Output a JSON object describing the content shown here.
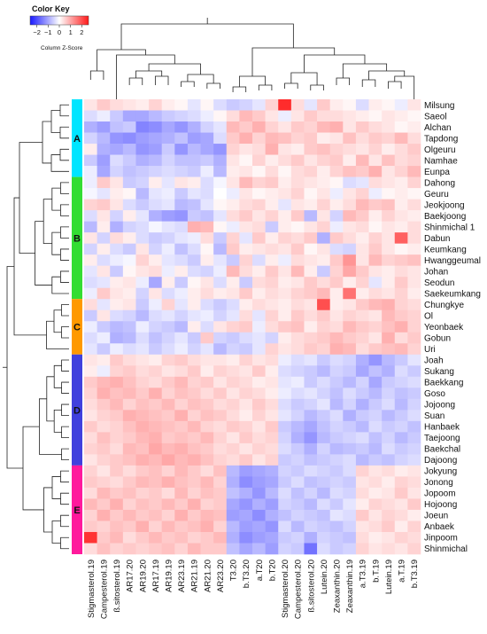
{
  "chart_data": {
    "type": "heatmap",
    "color_key": {
      "title": "Color Key",
      "scale_label": "Column Z-Score",
      "ticks": [
        -2,
        -1,
        0,
        1,
        2
      ],
      "tick_labels": [
        "−2",
        "−1",
        "0",
        "1",
        "2"
      ],
      "range": [
        -2.6,
        2.6
      ],
      "low_color": "#1a1aff",
      "mid_color": "#ffffff",
      "high_color": "#ff1a1a"
    },
    "rows": [
      "Milsung",
      "Saeol",
      "Alchan",
      "Tapdong",
      "Olgeuru",
      "Namhae",
      "Eunpa",
      "Dahong",
      "Geuru",
      "Jeokjoong",
      "Baekjoong",
      "Shinmichal 1",
      "Dabun",
      "Keumkang",
      "Hwanggeumal",
      "Johan",
      "Seodun",
      "Saekeumkang",
      "Chungkye",
      "Ol",
      "Yeonbaek",
      "Gobun",
      "Uri",
      "Joah",
      "Sukang",
      "Baekkang",
      "Goso",
      "Jojoong",
      "Suan",
      "Hanbaek",
      "Taejoong",
      "Baekchal",
      "Dajoong",
      "Jokyung",
      "Jonong",
      "Jopoom",
      "Hojoong",
      "Joeun",
      "Anbaek",
      "Jinpoom",
      "Shinmichal"
    ],
    "columns": [
      "Stigmasterol.19",
      "Campesterol.19",
      "ß.sitosterol.19",
      "AR17.20",
      "AR19.20",
      "AR17.19",
      "AR19.19",
      "AR23.19",
      "AR21.19",
      "AR21.20",
      "AR23.20",
      "T3.20",
      "b.T3.20",
      "a.T20",
      "b.T20",
      "Stigmasterol.20",
      "Campesterol.20",
      "ß.sitosterol.20",
      "Lutein.20",
      "Zeaxanthin.20",
      "Zeaxanthin.19",
      "a.T3.19",
      "b.T.19",
      "Lutein.19",
      "a.T.19",
      "b.T3.19"
    ],
    "groups": [
      {
        "label": "A",
        "color": "#00e5ff",
        "count": 7
      },
      {
        "label": "B",
        "color": "#33dd33",
        "count": 11
      },
      {
        "label": "C",
        "color": "#ff9900",
        "count": 5
      },
      {
        "label": "D",
        "color": "#4040dd",
        "count": 10
      },
      {
        "label": "E",
        "color": "#ff1a9c",
        "count": 8
      }
    ],
    "values": [
      [
        0.3,
        0.6,
        0.4,
        0.3,
        0.2,
        0.5,
        0.2,
        0.1,
        -0.3,
        0.1,
        -0.4,
        -0.6,
        -0.5,
        -0.3,
        0.5,
        2.4,
        0.4,
        -0.3,
        0.6,
        0.2,
        0.1,
        -0.4,
        0.2,
        0.1,
        -0.2,
        0.3
      ],
      [
        -0.4,
        -0.2,
        -0.6,
        -1.0,
        -1.0,
        -0.8,
        -0.6,
        -0.5,
        -0.4,
        -0.2,
        0.1,
        0.4,
        0.8,
        0.6,
        0.3,
        -0.2,
        0.3,
        0.6,
        0.4,
        0.4,
        0.3,
        0.2,
        0.1,
        0.3,
        0.2,
        0.1
      ],
      [
        -0.9,
        -1.1,
        -0.7,
        -0.6,
        -1.4,
        -1.3,
        -1.0,
        -1.2,
        -0.9,
        -0.5,
        -0.3,
        0.8,
        0.6,
        0.9,
        0.5,
        0.3,
        0.6,
        0.5,
        0.8,
        0.9,
        0.3,
        0.6,
        0.4,
        0.3,
        0.1,
        0.2
      ],
      [
        -0.5,
        -0.8,
        -1.2,
        -1.3,
        -1.1,
        -1.0,
        -0.9,
        -0.7,
        -1.1,
        -1.0,
        -0.4,
        0.6,
        0.9,
        0.5,
        0.8,
        0.7,
        0.5,
        0.6,
        0.2,
        0.3,
        0.7,
        0.4,
        0.6,
        0.5,
        0.8,
        0.4
      ],
      [
        0.2,
        -0.9,
        -1.0,
        -0.8,
        -1.2,
        -1.1,
        -0.6,
        -1.2,
        -0.8,
        -1.0,
        -1.2,
        0.5,
        0.3,
        0.4,
        0.9,
        0.3,
        0.2,
        0.6,
        0.7,
        0.5,
        0.4,
        0.3,
        0.5,
        0.2,
        0.4,
        0.6
      ],
      [
        -0.6,
        -1.1,
        -0.4,
        -0.6,
        -0.9,
        -0.8,
        -0.5,
        -0.7,
        -0.7,
        -0.6,
        -0.9,
        0.3,
        0.1,
        0.5,
        0.2,
        0.4,
        0.6,
        0.3,
        0.5,
        0.6,
        0.2,
        0.8,
        0.3,
        0.7,
        0.4,
        0.5
      ],
      [
        -0.2,
        -1.0,
        -0.5,
        -0.7,
        -0.6,
        -0.5,
        -0.4,
        -0.5,
        -0.6,
        -0.2,
        -0.8,
        0.2,
        0.3,
        0.1,
        0.4,
        0.1,
        0.4,
        0.5,
        0.2,
        0.5,
        0.7,
        0.6,
        0.9,
        0.3,
        0.5,
        0.8
      ],
      [
        -0.2,
        0.6,
        0.3,
        -0.6,
        -0.5,
        0.2,
        -0.3,
        0.3,
        0.2,
        -0.4,
        -0.1,
        0.3,
        0.8,
        0.5,
        0.6,
        0.2,
        0.4,
        0.3,
        0.2,
        0.1,
        -0.4,
        -0.3,
        0.4,
        0.3,
        0.2,
        0.5
      ],
      [
        -0.1,
        -0.3,
        0.2,
        0.1,
        -0.8,
        -0.3,
        -0.2,
        -0.6,
        -0.3,
        -0.4,
        0.0,
        -0.2,
        0.3,
        0.1,
        0.2,
        0.3,
        0.5,
        0.1,
        0.3,
        -0.2,
        0.3,
        0.5,
        -0.2,
        0.1,
        0.2,
        0.1
      ],
      [
        0.5,
        0.6,
        0.3,
        -0.4,
        -0.6,
        -0.4,
        -0.3,
        -0.8,
        -0.7,
        -0.3,
        0.1,
        0.2,
        0.4,
        0.5,
        0.2,
        -0.3,
        0.3,
        0.2,
        0.5,
        0.2,
        0.4,
        0.8,
        0.6,
        0.7,
        0.2,
        0.4
      ],
      [
        -0.4,
        0.3,
        -0.5,
        0.2,
        -0.3,
        -0.9,
        -1.1,
        -1.2,
        -0.6,
        -0.7,
        -0.3,
        0.4,
        0.6,
        0.3,
        0.5,
        0.2,
        0.6,
        -0.8,
        0.3,
        -0.5,
        0.8,
        0.6,
        0.2,
        0.5,
        0.3,
        0.2
      ],
      [
        -0.8,
        0.2,
        -0.9,
        -0.5,
        -0.4,
        -0.1,
        -0.3,
        -0.4,
        0.9,
        0.8,
        0.1,
        -0.2,
        0.3,
        0.4,
        -0.6,
        0.2,
        0.1,
        0.3,
        0.5,
        -0.2,
        0.3,
        0.4,
        0.1,
        0.3,
        0.2,
        0.4
      ],
      [
        0.3,
        -0.5,
        0.4,
        0.2,
        -0.4,
        -0.6,
        -0.5,
        -0.3,
        -0.2,
        0.4,
        -0.6,
        0.5,
        -0.3,
        0.6,
        0.2,
        0.5,
        0.4,
        0.6,
        -0.9,
        0.6,
        0.4,
        0.2,
        0.5,
        0.3,
        1.8,
        0.4
      ],
      [
        -0.5,
        0.2,
        -0.4,
        -0.6,
        0.3,
        -0.5,
        -0.2,
        -0.7,
        -0.4,
        0.1,
        -0.8,
        0.6,
        0.2,
        0.3,
        0.4,
        0.3,
        0.6,
        0.1,
        0.3,
        -0.4,
        -0.5,
        0.3,
        0.6,
        0.3,
        0.1,
        0.2
      ],
      [
        0.2,
        -0.4,
        -0.2,
        -0.1,
        0.5,
        0.2,
        -0.3,
        -0.4,
        -0.6,
        0.2,
        -0.3,
        -0.6,
        0.5,
        -0.4,
        0.2,
        -0.2,
        0.4,
        0.3,
        0.2,
        0.6,
        1.2,
        0.3,
        0.8,
        0.5,
        0.6,
        0.7
      ],
      [
        -0.3,
        0.3,
        -0.6,
        0.1,
        0.3,
        0.4,
        -0.2,
        0.2,
        -0.4,
        -0.5,
        -0.2,
        0.8,
        0.4,
        0.2,
        0.6,
        0.3,
        0.8,
        0.2,
        -0.6,
        0.5,
        1.0,
        0.6,
        0.3,
        0.2,
        0.4,
        0.3
      ],
      [
        -0.4,
        -0.3,
        0.2,
        0.3,
        -0.2,
        -1.0,
        0.2,
        -0.6,
        0.1,
        0.3,
        -0.4,
        0.2,
        -0.6,
        0.4,
        0.5,
        0.2,
        0.3,
        0.6,
        0.4,
        0.6,
        0.2,
        0.5,
        -0.3,
        0.2,
        0.6,
        0.3
      ],
      [
        -0.2,
        0.6,
        0.3,
        0.2,
        -0.5,
        0.3,
        -0.4,
        -0.2,
        0.2,
        0.4,
        0.2,
        0.3,
        0.6,
        0.2,
        0.4,
        0.3,
        0.5,
        0.6,
        0.8,
        0.2,
        1.6,
        0.2,
        0.4,
        0.3,
        0.5,
        0.2
      ],
      [
        0.4,
        -0.3,
        0.2,
        0.3,
        -0.6,
        -0.2,
        0.5,
        -0.3,
        0.2,
        -0.4,
        -0.6,
        -0.4,
        0.2,
        0.4,
        0.3,
        0.2,
        0.4,
        0.3,
        2.0,
        0.2,
        0.3,
        0.6,
        0.8,
        0.9,
        0.5,
        0.4
      ],
      [
        -0.6,
        0.3,
        -0.4,
        -0.5,
        -0.8,
        -0.4,
        -0.3,
        -0.5,
        -0.3,
        -0.2,
        -0.5,
        -0.3,
        0.4,
        -0.3,
        0.5,
        0.2,
        0.6,
        0.4,
        0.6,
        0.3,
        0.5,
        0.4,
        0.3,
        0.8,
        0.6,
        0.5
      ],
      [
        -0.2,
        -0.6,
        -0.8,
        -0.7,
        -0.2,
        -0.5,
        -0.6,
        -0.8,
        0.2,
        -0.4,
        0.3,
        0.5,
        0.6,
        -0.2,
        0.4,
        0.6,
        0.7,
        0.2,
        0.5,
        0.4,
        0.8,
        0.6,
        0.5,
        0.7,
        0.9,
        0.5
      ],
      [
        -0.4,
        -0.2,
        -0.9,
        -0.8,
        -0.4,
        -0.7,
        -0.5,
        -0.3,
        -0.6,
        0.6,
        -0.5,
        -0.6,
        -0.4,
        -0.3,
        -0.5,
        0.2,
        0.4,
        0.5,
        0.6,
        0.8,
        0.6,
        0.5,
        0.3,
        0.9,
        0.4,
        0.6
      ],
      [
        -0.3,
        -0.6,
        -0.2,
        -0.4,
        -0.3,
        -0.6,
        -0.4,
        -0.2,
        -0.5,
        -0.3,
        -0.8,
        -0.5,
        -0.6,
        -0.3,
        0.5,
        0.3,
        0.4,
        0.6,
        0.5,
        0.9,
        0.8,
        0.4,
        0.6,
        0.7,
        0.8,
        0.5
      ],
      [
        0.3,
        0.2,
        0.6,
        0.4,
        0.3,
        0.2,
        0.5,
        0.6,
        0.4,
        0.3,
        0.3,
        0.2,
        0.5,
        0.3,
        0.4,
        -0.2,
        -0.4,
        -0.3,
        -0.6,
        -0.4,
        -0.5,
        -0.9,
        -1.2,
        -0.8,
        -0.6,
        -0.3
      ],
      [
        0.2,
        -0.2,
        0.5,
        0.6,
        0.4,
        0.5,
        0.3,
        0.4,
        0.6,
        0.2,
        0.5,
        0.4,
        0.3,
        0.6,
        0.2,
        -0.4,
        -0.5,
        -0.6,
        -0.8,
        -0.5,
        -0.6,
        -1.0,
        -0.7,
        -0.9,
        -0.4,
        -0.6
      ],
      [
        0.6,
        0.8,
        0.9,
        0.7,
        0.5,
        0.4,
        0.6,
        0.8,
        0.5,
        0.6,
        0.3,
        0.5,
        0.4,
        0.2,
        0.3,
        -0.3,
        -0.2,
        -0.6,
        -0.4,
        -0.6,
        -0.8,
        -0.5,
        -1.0,
        -0.6,
        -0.5,
        -0.4
      ],
      [
        0.5,
        0.9,
        0.7,
        0.8,
        0.6,
        0.9,
        0.5,
        0.7,
        0.6,
        0.4,
        0.6,
        0.3,
        0.5,
        0.4,
        0.2,
        -0.2,
        -0.4,
        -0.3,
        -0.5,
        -0.7,
        -0.4,
        -0.6,
        -0.8,
        -0.5,
        -0.7,
        -0.6
      ],
      [
        0.4,
        0.6,
        0.8,
        0.5,
        0.7,
        0.6,
        0.8,
        0.5,
        0.7,
        0.6,
        0.4,
        0.5,
        0.3,
        0.6,
        0.4,
        -0.4,
        -0.6,
        -0.5,
        -0.3,
        -0.8,
        -0.5,
        -0.9,
        -0.6,
        -0.4,
        -0.8,
        -0.5
      ],
      [
        0.3,
        0.5,
        0.6,
        0.9,
        0.8,
        0.7,
        0.6,
        0.9,
        0.5,
        0.7,
        0.6,
        0.4,
        0.2,
        0.5,
        0.3,
        -0.3,
        -0.5,
        -0.8,
        -0.6,
        -0.4,
        -0.9,
        -0.6,
        -0.5,
        -0.8,
        -0.6,
        -0.4
      ],
      [
        0.6,
        0.4,
        0.5,
        0.7,
        0.9,
        0.8,
        0.7,
        0.6,
        0.8,
        0.5,
        0.4,
        0.6,
        0.5,
        0.3,
        0.6,
        -0.6,
        -0.8,
        -1.0,
        -0.7,
        -0.5,
        -0.6,
        -0.8,
        -0.4,
        -0.6,
        -0.5,
        -0.7
      ],
      [
        0.4,
        0.7,
        0.5,
        0.6,
        0.8,
        0.9,
        0.6,
        0.7,
        0.6,
        0.8,
        0.5,
        0.3,
        0.6,
        0.4,
        0.5,
        -0.5,
        -0.9,
        -1.2,
        -0.8,
        -0.6,
        -0.5,
        -0.4,
        -0.7,
        -0.5,
        -0.8,
        -0.6
      ],
      [
        0.5,
        0.6,
        0.4,
        0.8,
        0.7,
        1.0,
        0.8,
        0.9,
        0.7,
        0.6,
        0.4,
        0.5,
        0.3,
        0.5,
        0.4,
        -0.4,
        -0.6,
        -0.9,
        -0.5,
        -0.8,
        -0.7,
        -0.6,
        -0.8,
        -0.4,
        -0.6,
        -0.5
      ],
      [
        0.3,
        0.5,
        0.6,
        0.7,
        0.9,
        0.8,
        1.0,
        0.8,
        0.9,
        0.7,
        0.5,
        0.4,
        0.6,
        0.3,
        0.5,
        -0.6,
        -0.5,
        -0.7,
        -0.6,
        -0.5,
        -0.4,
        -0.8,
        -0.6,
        -0.7,
        -0.5,
        -0.4
      ],
      [
        0.5,
        0.3,
        0.6,
        0.4,
        0.6,
        0.7,
        0.5,
        0.8,
        0.6,
        0.4,
        0.7,
        -0.8,
        -1.1,
        -1.0,
        -0.9,
        -0.5,
        -0.6,
        -0.4,
        -0.5,
        -0.6,
        -0.4,
        0.5,
        0.3,
        0.4,
        0.2,
        0.3
      ],
      [
        0.6,
        0.5,
        0.4,
        0.6,
        0.8,
        0.7,
        0.9,
        0.7,
        0.6,
        0.8,
        0.5,
        -0.9,
        -1.3,
        -1.1,
        -1.0,
        -0.6,
        -0.4,
        -0.7,
        -0.6,
        -0.5,
        -0.6,
        0.3,
        0.4,
        0.2,
        0.5,
        0.4
      ],
      [
        0.4,
        0.8,
        0.6,
        0.7,
        0.5,
        0.6,
        0.4,
        0.8,
        0.5,
        0.7,
        0.6,
        -0.7,
        -0.9,
        -1.2,
        -0.8,
        -0.4,
        -0.7,
        -0.5,
        -0.8,
        -0.4,
        -0.5,
        0.4,
        0.2,
        0.3,
        0.6,
        0.3
      ],
      [
        0.8,
        0.6,
        0.9,
        0.5,
        0.7,
        0.6,
        0.8,
        0.6,
        0.9,
        0.5,
        0.6,
        -1.0,
        -1.2,
        -0.9,
        -1.1,
        -0.5,
        -0.6,
        -0.8,
        -0.4,
        -0.6,
        -0.3,
        0.2,
        0.5,
        0.4,
        0.3,
        0.6
      ],
      [
        0.5,
        0.9,
        0.6,
        0.8,
        0.6,
        0.7,
        0.5,
        0.9,
        0.6,
        0.8,
        0.7,
        -1.1,
        -1.0,
        -1.3,
        -0.9,
        -0.7,
        -0.5,
        -0.6,
        -0.7,
        -0.3,
        -0.4,
        0.6,
        0.3,
        0.5,
        0.4,
        0.2
      ],
      [
        0.6,
        0.5,
        0.7,
        0.6,
        0.9,
        0.5,
        0.8,
        0.6,
        0.7,
        0.9,
        0.5,
        -0.8,
        -1.1,
        -1.0,
        -1.2,
        -0.4,
        -0.8,
        -0.5,
        -0.6,
        -0.7,
        -0.5,
        0.3,
        0.4,
        0.6,
        0.2,
        0.5
      ],
      [
        2.3,
        0.6,
        0.8,
        0.4,
        0.6,
        0.8,
        0.6,
        0.7,
        0.5,
        0.6,
        0.8,
        -0.9,
        -1.3,
        -1.1,
        -1.0,
        -0.6,
        -0.5,
        -0.9,
        -0.5,
        -0.6,
        -0.7,
        0.4,
        0.2,
        0.3,
        0.5,
        0.4
      ],
      [
        0.4,
        0.7,
        0.5,
        0.6,
        0.5,
        0.6,
        0.7,
        0.5,
        0.8,
        0.6,
        0.6,
        -0.7,
        -1.0,
        -0.8,
        -1.1,
        -0.5,
        -0.6,
        -1.6,
        -0.4,
        -0.6,
        -0.5,
        0.5,
        0.3,
        0.4,
        0.3,
        0.5
      ]
    ]
  }
}
